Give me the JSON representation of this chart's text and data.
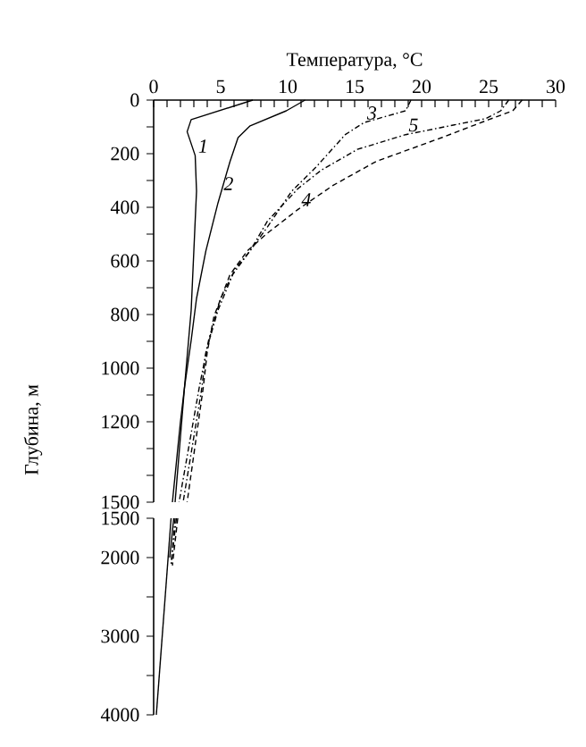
{
  "chart_data": [
    {
      "type": "line",
      "xlabel": "Температура, °C",
      "ylabel": "Глубина, м",
      "xlim": [
        0,
        30
      ],
      "xticks": [
        0,
        {
          "value": 1,
          "label": null
        },
        {
          "value": 2,
          "label": null
        },
        {
          "value": 3,
          "label": null
        },
        {
          "value": 4,
          "label": null
        },
        5,
        {
          "value": 6,
          "label": null
        },
        {
          "value": 7,
          "label": null
        },
        {
          "value": 8,
          "label": null
        },
        {
          "value": 9,
          "label": null
        },
        10,
        {
          "value": 11,
          "label": null
        },
        {
          "value": 12,
          "label": null
        },
        {
          "value": 13,
          "label": null
        },
        {
          "value": 14,
          "label": null
        },
        15,
        {
          "value": 16,
          "label": null
        },
        {
          "value": 17,
          "label": null
        },
        {
          "value": 18,
          "label": null
        },
        {
          "value": 19,
          "label": null
        },
        20,
        {
          "value": 21,
          "label": null
        },
        {
          "value": 22,
          "label": null
        },
        {
          "value": 23,
          "label": null
        },
        {
          "value": 24,
          "label": null
        },
        25,
        {
          "value": 26,
          "label": null
        },
        {
          "value": 27,
          "label": null
        },
        {
          "value": 28,
          "label": null
        },
        {
          "value": 29,
          "label": null
        },
        30
      ],
      "ylim": [
        1500,
        0
      ],
      "yticks": [
        0,
        {
          "value": 100,
          "label": null
        },
        200,
        {
          "value": 300,
          "label": null
        },
        400,
        {
          "value": 500,
          "label": null
        },
        600,
        {
          "value": 700,
          "label": null
        },
        800,
        {
          "value": 900,
          "label": null
        },
        1000,
        {
          "value": 1100,
          "label": null
        },
        1200,
        {
          "value": 1300,
          "label": null
        },
        {
          "value": 1400,
          "label": null
        },
        1500
      ],
      "series": [
        {
          "color": "#000000",
          "line_style": "solid",
          "x": [
            7.4,
            2.8,
            2.5,
            3.1,
            3.2,
            3.0,
            2.8,
            2.3,
            2.0,
            1.4
          ],
          "values": [
            0,
            73,
            118,
            207,
            340,
            562,
            784,
            1073,
            1200,
            1500
          ]
        },
        {
          "color": "#000000",
          "line_style": "solid",
          "x": [
            11.3,
            9.9,
            7.2,
            6.3,
            5.7,
            4.8,
            3.9,
            3.2,
            2.8,
            2.3,
            1.6
          ],
          "values": [
            0,
            40,
            96,
            140,
            229,
            384,
            562,
            740,
            896,
            1073,
            1500
          ]
        },
        {
          "color": "#000000",
          "line_style": "dashdot",
          "x": [
            19.2,
            18.8,
            15.7,
            14.3,
            12.1,
            10.3,
            8.5,
            7.2,
            6.1,
            5.0,
            4.1,
            3.4,
            1.9
          ],
          "values": [
            0,
            40,
            84,
            129,
            251,
            340,
            473,
            562,
            629,
            740,
            896,
            1073,
            1500
          ]
        },
        {
          "color": "#000000",
          "line_style": "dashed",
          "x": [
            27.5,
            26.8,
            25.0,
            21.5,
            16.6,
            13.4,
            10.8,
            8.5,
            7.0,
            5.7,
            4.5,
            4.0,
            3.7,
            2.5
          ],
          "values": [
            0,
            40,
            73,
            140,
            229,
            318,
            407,
            496,
            562,
            651,
            807,
            940,
            1073,
            1500
          ]
        },
        {
          "color": "#000000",
          "line_style": "dashdot",
          "x": [
            26.5,
            25.9,
            24.8,
            18.8,
            15.2,
            12.5,
            10.8,
            8.5,
            7.2,
            5.9,
            4.8,
            3.9,
            3.6,
            2.2
          ],
          "values": [
            0,
            40,
            69,
            129,
            184,
            262,
            329,
            451,
            562,
            651,
            784,
            940,
            1073,
            1500
          ]
        }
      ],
      "annotations": [
        {
          "text": "1",
          "x": 3.1,
          "y": 207
        },
        {
          "text": "2",
          "x": 5.0,
          "y": 347
        },
        {
          "text": "3",
          "x": 15.7,
          "y": 84
        },
        {
          "text": "4",
          "x": 10.8,
          "y": 407
        },
        {
          "text": "5",
          "x": 18.8,
          "y": 129
        }
      ]
    },
    {
      "type": "line",
      "tick_labels": "y",
      "xlim": [
        0,
        30
      ],
      "ylim": [
        4000,
        1500
      ],
      "yticks": [
        1500,
        2000,
        {
          "value": 2500,
          "label": null
        },
        3000,
        {
          "value": 3500,
          "label": null
        },
        4000
      ],
      "series": [
        {
          "color": "#000000",
          "line_style": "solid",
          "x": [
            1.3,
            0.2
          ],
          "values": [
            1500,
            4000
          ]
        },
        {
          "color": "#000000",
          "line_style": "solid",
          "x": [
            1.5,
            1.2
          ],
          "values": [
            1500,
            2000
          ]
        },
        {
          "color": "#000000",
          "line_style": "dashdot",
          "x": [
            1.6,
            1.3
          ],
          "values": [
            1500,
            2100
          ]
        },
        {
          "color": "#000000",
          "line_style": "dashed",
          "x": [
            1.8,
            1.4
          ],
          "values": [
            1500,
            2100
          ]
        },
        {
          "color": "#000000",
          "line_style": "dashdot",
          "x": [
            1.7,
            1.3
          ],
          "values": [
            1500,
            2100
          ]
        }
      ]
    }
  ]
}
